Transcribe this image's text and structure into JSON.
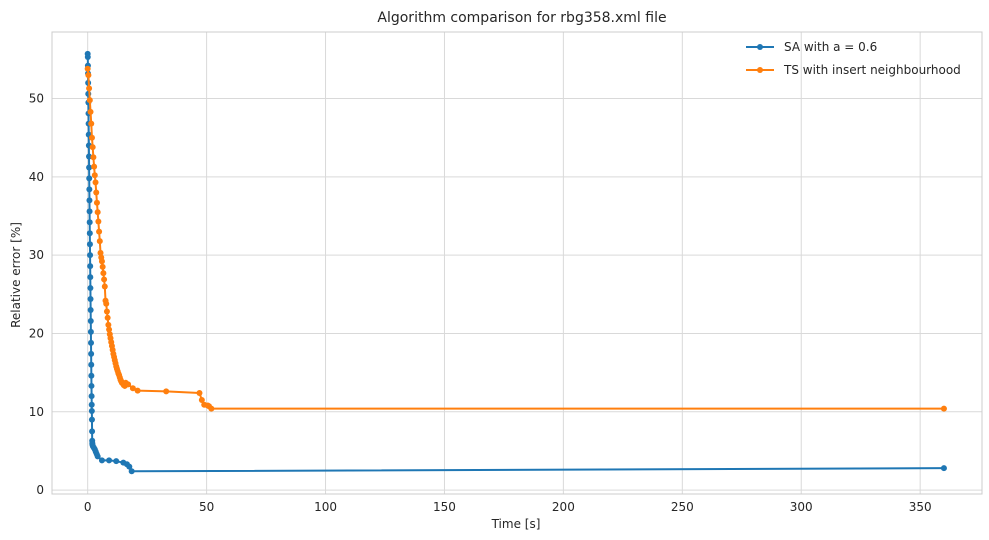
{
  "chart_data": {
    "type": "line",
    "title": "Algorithm comparison for rbg358.xml file",
    "xlabel": "Time [s]",
    "ylabel": "Relative error [%]",
    "xlim": [
      -15,
      376
    ],
    "ylim": [
      -0.5,
      58.5
    ],
    "xticks": [
      0,
      50,
      100,
      150,
      200,
      250,
      300,
      350
    ],
    "yticks": [
      0,
      10,
      20,
      30,
      40,
      50
    ],
    "grid": true,
    "legend_position": "top-right",
    "series": [
      {
        "name": "SA with a = 0.6",
        "color": "#1f77b4",
        "marker": "circle",
        "x": [
          0.0,
          0.05,
          0.1,
          0.15,
          0.2,
          0.25,
          0.3,
          0.35,
          0.4,
          0.45,
          0.5,
          0.55,
          0.6,
          0.65,
          0.7,
          0.75,
          0.8,
          0.85,
          0.9,
          0.95,
          1.0,
          1.05,
          1.1,
          1.15,
          1.2,
          1.25,
          1.3,
          1.35,
          1.4,
          1.45,
          1.5,
          1.55,
          1.6,
          1.65,
          1.7,
          1.75,
          1.8,
          1.85,
          1.9,
          1.95,
          2.0,
          2.2,
          2.6,
          3.0,
          3.4,
          3.8,
          4.2,
          6.0,
          9.0,
          12.0,
          15.0,
          16.5,
          17.5,
          18.5,
          360.0
        ],
        "y": [
          55.7,
          55.3,
          54.2,
          53.2,
          52.0,
          50.6,
          49.5,
          48.1,
          46.8,
          45.4,
          44.0,
          42.6,
          41.2,
          39.8,
          38.4,
          37.0,
          35.6,
          34.2,
          32.8,
          31.4,
          30.0,
          28.6,
          27.2,
          25.8,
          24.4,
          23.0,
          21.6,
          20.2,
          18.8,
          17.4,
          16.0,
          14.6,
          13.3,
          12.0,
          10.9,
          10.1,
          9.0,
          7.5,
          6.3,
          6.0,
          5.8,
          5.6,
          5.4,
          5.2,
          4.9,
          4.6,
          4.3,
          3.8,
          3.8,
          3.7,
          3.5,
          3.3,
          3.0,
          2.4,
          2.8
        ]
      },
      {
        "name": "TS with insert neighbourhood",
        "color": "#ff7f0e",
        "marker": "circle",
        "x": [
          0.0,
          0.3,
          0.6,
          0.9,
          1.2,
          1.5,
          1.8,
          2.1,
          2.4,
          2.7,
          3.0,
          3.3,
          3.6,
          3.9,
          4.2,
          4.5,
          4.8,
          5.1,
          5.4,
          5.7,
          6.0,
          6.3,
          6.6,
          6.9,
          7.2,
          7.5,
          7.8,
          8.1,
          8.4,
          8.7,
          9.0,
          9.3,
          9.6,
          9.9,
          10.2,
          10.5,
          10.8,
          11.1,
          11.4,
          11.7,
          12.0,
          12.3,
          12.6,
          12.9,
          13.2,
          13.5,
          13.8,
          14.1,
          14.4,
          14.8,
          15.2,
          15.6,
          16.0,
          17.0,
          19.0,
          21.0,
          33.0,
          47.0,
          48.0,
          49.0,
          50.5,
          51.0,
          52.0,
          360.0
        ],
        "y": [
          53.8,
          53.0,
          51.3,
          49.8,
          48.3,
          46.8,
          45.0,
          43.8,
          42.5,
          41.3,
          40.2,
          39.3,
          38.0,
          36.7,
          35.5,
          34.3,
          33.0,
          31.8,
          30.3,
          29.7,
          29.2,
          28.5,
          27.7,
          26.9,
          26.0,
          24.2,
          23.8,
          22.8,
          22.0,
          21.1,
          20.5,
          19.9,
          19.4,
          18.9,
          18.4,
          17.9,
          17.4,
          17.0,
          16.6,
          16.2,
          15.8,
          15.5,
          15.2,
          14.9,
          14.7,
          14.4,
          14.1,
          13.9,
          13.7,
          13.6,
          13.4,
          13.3,
          13.7,
          13.5,
          13.0,
          12.7,
          12.6,
          12.4,
          11.5,
          10.9,
          10.8,
          10.7,
          10.4,
          10.4
        ]
      }
    ]
  }
}
